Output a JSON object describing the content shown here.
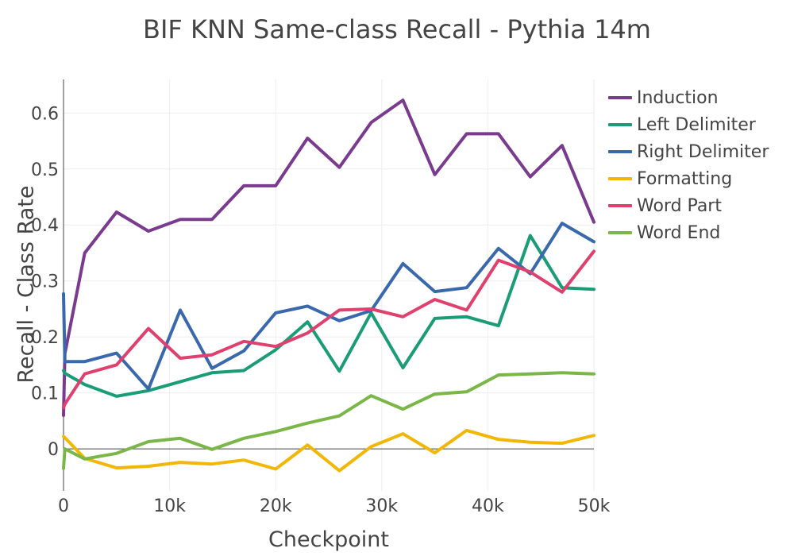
{
  "chart_data": {
    "type": "line",
    "title": "BIF KNN Same-class Recall - Pythia 14m",
    "xlabel": "Checkpoint",
    "ylabel": "Recall - Class Rate",
    "xlim": [
      0,
      50000
    ],
    "ylim": [
      -0.075,
      0.66
    ],
    "xticks": [
      {
        "value": 0,
        "label": "0"
      },
      {
        "value": 10000,
        "label": "10k"
      },
      {
        "value": 20000,
        "label": "20k"
      },
      {
        "value": 30000,
        "label": "30k"
      },
      {
        "value": 40000,
        "label": "40k"
      },
      {
        "value": 50000,
        "label": "50k"
      }
    ],
    "yticks": [
      {
        "value": 0,
        "label": "0"
      },
      {
        "value": 0.1,
        "label": "0.1"
      },
      {
        "value": 0.2,
        "label": "0.2"
      },
      {
        "value": 0.3,
        "label": "0.3"
      },
      {
        "value": 0.4,
        "label": "0.4"
      },
      {
        "value": 0.5,
        "label": "0.5"
      },
      {
        "value": 0.6,
        "label": "0.6"
      }
    ],
    "grid": true,
    "legend_position": "top-right",
    "x": [
      0,
      128,
      2000,
      5000,
      8000,
      11000,
      14000,
      17000,
      20000,
      23000,
      26000,
      29000,
      32000,
      35000,
      38000,
      41000,
      44000,
      47000,
      50000
    ],
    "series": [
      {
        "name": "Induction",
        "color": "#7a3b8f",
        "values": [
          0.06,
          0.17,
          0.35,
          0.423,
          0.389,
          0.41,
          0.41,
          0.47,
          0.47,
          0.555,
          0.503,
          0.583,
          0.623,
          0.49,
          0.563,
          0.563,
          0.486,
          0.542,
          0.405
        ]
      },
      {
        "name": "Left Delimiter",
        "color": "#1a9c77",
        "values": [
          0.14,
          0.135,
          0.115,
          0.094,
          0.104,
          0.12,
          0.136,
          0.14,
          0.177,
          0.227,
          0.139,
          0.243,
          0.145,
          0.233,
          0.236,
          0.22,
          0.381,
          0.288,
          0.285
        ]
      },
      {
        "name": "Right Delimiter",
        "color": "#3a68ac",
        "values": [
          0.277,
          0.156,
          0.156,
          0.171,
          0.107,
          0.248,
          0.144,
          0.175,
          0.243,
          0.255,
          0.229,
          0.247,
          0.331,
          0.281,
          0.288,
          0.358,
          0.313,
          0.403,
          0.37
        ]
      },
      {
        "name": "Formatting",
        "color": "#f2b705",
        "values": [
          0.022,
          0.02,
          -0.017,
          -0.034,
          -0.031,
          -0.024,
          -0.027,
          -0.02,
          -0.036,
          0.007,
          -0.039,
          0.004,
          0.027,
          -0.007,
          0.033,
          0.017,
          0.012,
          0.01,
          0.024
        ]
      },
      {
        "name": "Word Part",
        "color": "#e0406e",
        "values": [
          0.074,
          0.08,
          0.134,
          0.15,
          0.215,
          0.162,
          0.168,
          0.192,
          0.183,
          0.207,
          0.248,
          0.25,
          0.236,
          0.267,
          0.248,
          0.337,
          0.316,
          0.28,
          0.353
        ]
      },
      {
        "name": "Word End",
        "color": "#7ab648",
        "values": [
          -0.035,
          0.0,
          -0.018,
          -0.008,
          0.013,
          0.019,
          -0.001,
          0.019,
          0.031,
          0.046,
          0.059,
          0.095,
          0.071,
          0.098,
          0.102,
          0.132,
          0.134,
          0.136,
          0.134
        ]
      }
    ]
  }
}
